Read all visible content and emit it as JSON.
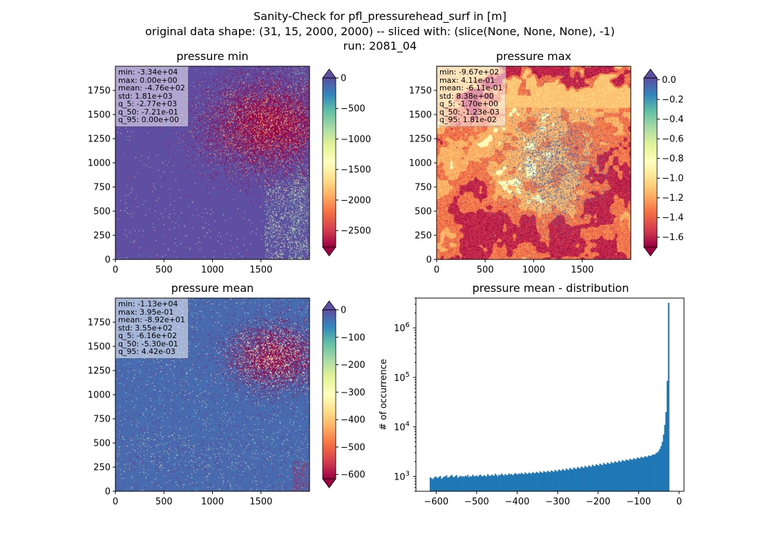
{
  "suptitle": {
    "line1": "Sanity-Check for pfl_pressurehead_surf in [m]",
    "line2": "original data shape: (31, 15, 2000, 2000) -- sliced with: (slice(None, None, None), -1)",
    "line3": "run: 2081_04"
  },
  "colormap": "Spectral",
  "colors": {
    "bar": "#1f77b4",
    "over": "#5e4fa2",
    "under": "#9e0142"
  },
  "map_axis": {
    "ticks": [
      0,
      500,
      1000,
      1500
    ],
    "xlim": [
      0,
      2000
    ],
    "ylim": [
      0,
      2000
    ],
    "y_ticks": [
      0,
      250,
      500,
      750,
      1000,
      1250,
      1500,
      1750
    ]
  },
  "panels": [
    {
      "title": "pressure min",
      "stats": [
        "min: -3.34e+04",
        "max: 0.00e+00",
        "mean: -4.76e+02",
        "std: 1.81e+03",
        "q_5: -2.77e+03",
        "q_50: -7.21e-01",
        "q_95: 0.00e+00"
      ],
      "colorbar": {
        "vmin": -2770,
        "vmax": 0,
        "ticks": [
          "0",
          "−500",
          "−1000",
          "−1500",
          "−2000",
          "−2500"
        ],
        "tick_values": [
          0,
          -500,
          -1000,
          -1500,
          -2000,
          -2500
        ],
        "extend": "both"
      }
    },
    {
      "title": "pressure max",
      "stats": [
        "min: -9.67e+02",
        "max: 4.11e-01",
        "mean: -6.11e-01",
        "std: 8.38e+00",
        "q_5: -1.70e+00",
        "q_50: -1.23e-03",
        "q_95: 1.81e-02"
      ],
      "colorbar": {
        "vmin": -1.7,
        "vmax": 0.018,
        "ticks": [
          "0.0",
          "−0.2",
          "−0.4",
          "−0.6",
          "−0.8",
          "−1.0",
          "−1.2",
          "−1.4",
          "−1.6"
        ],
        "tick_values": [
          0,
          -0.2,
          -0.4,
          -0.6,
          -0.8,
          -1.0,
          -1.2,
          -1.4,
          -1.6
        ],
        "extend": "both"
      }
    },
    {
      "title": "pressure mean",
      "stats": [
        "min: -1.13e+04",
        "max: 3.95e-01",
        "mean: -8.92e+01",
        "std: 3.55e+02",
        "q_5: -6.16e+02",
        "q_50: -5.30e-01",
        "q_95: 4.42e-03"
      ],
      "colorbar": {
        "vmin": -616,
        "vmax": 0.0044,
        "ticks": [
          "0",
          "−100",
          "−200",
          "−300",
          "−400",
          "−500",
          "−600"
        ],
        "tick_values": [
          0,
          -100,
          -200,
          -300,
          -400,
          -500,
          -600
        ],
        "extend": "both"
      }
    }
  ],
  "chart_data": [
    {
      "type": "heatmap",
      "title": "pressure min",
      "xlim": [
        0,
        2000
      ],
      "ylim": [
        0,
        2000
      ],
      "colorbar_range": [
        -2770,
        0
      ]
    },
    {
      "type": "heatmap",
      "title": "pressure max",
      "xlim": [
        0,
        2000
      ],
      "ylim": [
        0,
        2000
      ],
      "colorbar_range": [
        -1.7,
        0.018
      ]
    },
    {
      "type": "heatmap",
      "title": "pressure mean",
      "xlim": [
        0,
        2000
      ],
      "ylim": [
        0,
        2000
      ],
      "colorbar_range": [
        -616,
        0.0044
      ]
    },
    {
      "type": "bar",
      "title": "pressure mean - distribution",
      "xlabel": "",
      "ylabel": "# of occurrence",
      "yscale": "log",
      "xlim": [
        -650,
        12
      ],
      "ylim": [
        500,
        4000000
      ],
      "x_ticks": [
        -600,
        -500,
        -400,
        -300,
        -200,
        -100,
        0
      ],
      "x_tick_labels": [
        "−600",
        "−500",
        "−400",
        "−300",
        "−200",
        "−100",
        "0"
      ],
      "y_ticks": [
        1000,
        10000,
        100000,
        1000000
      ],
      "bins": {
        "start": -616,
        "end": 0,
        "count": 200
      },
      "counts": [
        950,
        910,
        880,
        940,
        1000,
        960,
        920,
        980,
        1020,
        890,
        940,
        990,
        1000,
        1050,
        930,
        970,
        1010,
        1080,
        990,
        960,
        1020,
        1060,
        940,
        980,
        1030,
        990,
        1010,
        970,
        1040,
        1000,
        1070,
        960,
        1020,
        990,
        1080,
        1010,
        1000,
        1050,
        980,
        1040,
        1090,
        1020,
        1000,
        1060,
        1030,
        990,
        1110,
        1040,
        1010,
        1080,
        1060,
        1020,
        1130,
        1070,
        1000,
        1090,
        1050,
        1140,
        1080,
        1030,
        1110,
        1070,
        1060,
        1150,
        1090,
        1120,
        1060,
        1100,
        1170,
        1120,
        1090,
        1150,
        1110,
        1180,
        1130,
        1100,
        1200,
        1140,
        1120,
        1190,
        1160,
        1130,
        1220,
        1170,
        1150,
        1240,
        1190,
        1160,
        1260,
        1210,
        1180,
        1280,
        1230,
        1200,
        1300,
        1250,
        1220,
        1320,
        1270,
        1240,
        1350,
        1290,
        1260,
        1380,
        1320,
        1290,
        1410,
        1350,
        1310,
        1440,
        1380,
        1340,
        1480,
        1410,
        1370,
        1510,
        1450,
        1400,
        1550,
        1480,
        1440,
        1590,
        1520,
        1480,
        1630,
        1560,
        1520,
        1670,
        1600,
        1560,
        1720,
        1640,
        1600,
        1760,
        1690,
        1640,
        1810,
        1730,
        1690,
        1860,
        1780,
        1740,
        1910,
        1830,
        1790,
        1960,
        1880,
        1850,
        2020,
        1940,
        1900,
        2080,
        2000,
        1960,
        2140,
        2060,
        2020,
        2200,
        2120,
        2090,
        2270,
        2180,
        2160,
        2340,
        2250,
        2230,
        2410,
        2330,
        2300,
        2480,
        2410,
        2380,
        2560,
        2500,
        2470,
        2650,
        2600,
        2580,
        2760,
        2740,
        2780,
        2950,
        3050,
        3250,
        3600,
        4100,
        5000,
        7000,
        11000,
        20000,
        85000,
        3200000
      ]
    }
  ]
}
